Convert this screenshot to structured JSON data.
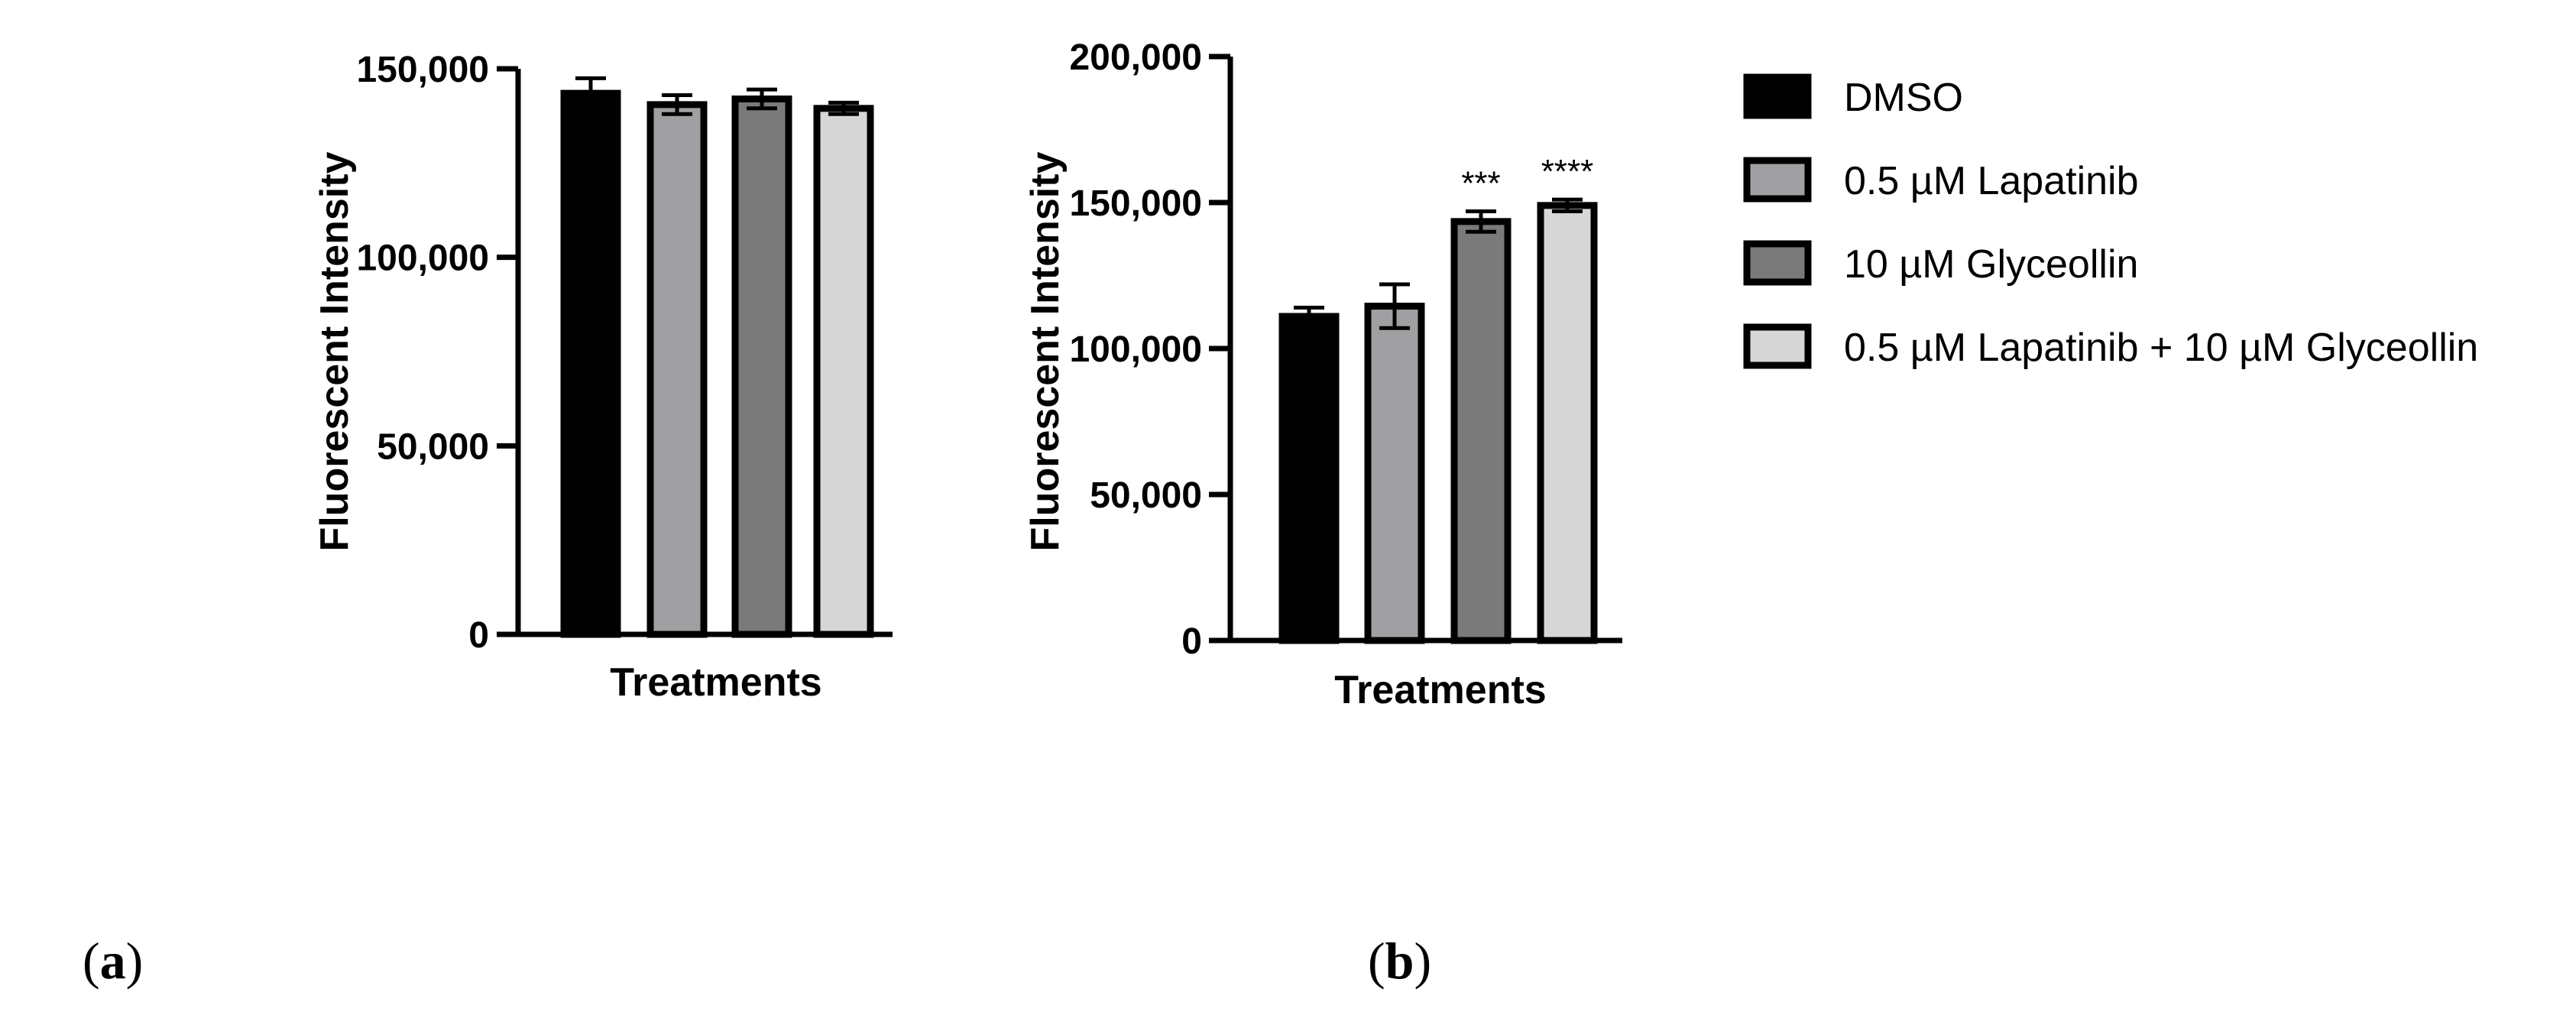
{
  "legend": [
    {
      "label": "DMSO",
      "color": "#000000"
    },
    {
      "label": "0.5 µM Lapatinib",
      "color": "#a0a0a2"
    },
    {
      "label": "10 µM Glyceollin",
      "color": "#7a7a7a"
    },
    {
      "label": "0.5 µM Lapatinib + 10 µM Glyceollin",
      "color": "#d6d6d6"
    }
  ],
  "chart_data": [
    {
      "panel": "a",
      "panel_label": {
        "open": "(",
        "letter": "a",
        "close": ")"
      },
      "type": "bar",
      "xlabel": "Treatments",
      "ylabel": "Fluorescent Intensity",
      "ylim": [
        0,
        150000
      ],
      "yticks": [
        {
          "value": 0,
          "label": "0"
        },
        {
          "value": 50000,
          "label": "50,000"
        },
        {
          "value": 100000,
          "label": "100,000"
        },
        {
          "value": 150000,
          "label": "150,000"
        }
      ],
      "categories": [
        "DMSO",
        "0.5 µM Lapatinib",
        "10 µM Glyceollin",
        "0.5 µM Lapatinib + 10 µM Glyceollin"
      ],
      "values": [
        143500,
        140500,
        142000,
        139500
      ],
      "errors": [
        4000,
        2500,
        2500,
        1500
      ],
      "significance": [
        "",
        "",
        "",
        ""
      ]
    },
    {
      "panel": "b",
      "panel_label": {
        "open": "(",
        "letter": "b",
        "close": ")"
      },
      "type": "bar",
      "xlabel": "Treatments",
      "ylabel": "Fluorescent Intensity",
      "ylim": [
        0,
        200000
      ],
      "yticks": [
        {
          "value": 0,
          "label": "0"
        },
        {
          "value": 50000,
          "label": "50,000"
        },
        {
          "value": 100000,
          "label": "100,000"
        },
        {
          "value": 150000,
          "label": "150,000"
        },
        {
          "value": 200000,
          "label": "200,000"
        }
      ],
      "categories": [
        "DMSO",
        "0.5 µM Lapatinib",
        "10 µM Glyceollin",
        "0.5 µM Lapatinib + 10 µM Glyceollin"
      ],
      "values": [
        111000,
        114500,
        143500,
        149000
      ],
      "errors": [
        3000,
        7500,
        3500,
        2000
      ],
      "significance": [
        "",
        "",
        "***",
        "****"
      ]
    }
  ]
}
